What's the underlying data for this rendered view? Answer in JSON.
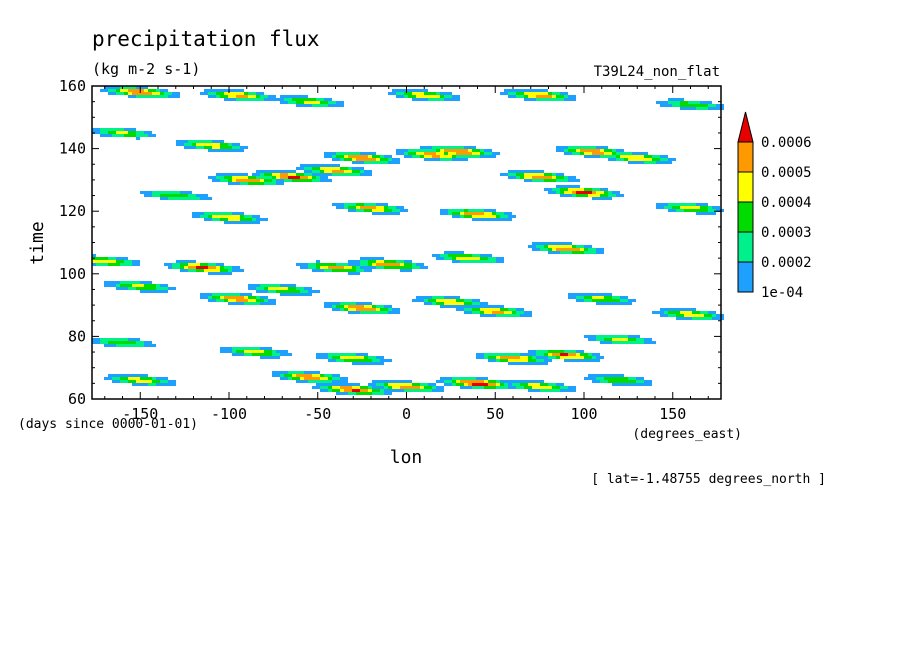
{
  "chart_data": {
    "type": "heatmap",
    "title": "precipitation flux",
    "units": "(kg m-2 s-1)",
    "run_label": "T39L24_non_flat",
    "xlabel": "lon",
    "x_units": "(degrees_east)",
    "ylabel": "time",
    "y_units": "(days since 0000-01-01)",
    "note": "[ lat=-1.48755 degrees_north ]",
    "xlim": [
      -177.1875,
      177.1875
    ],
    "ylim": [
      60,
      160
    ],
    "x_ticks": [
      -150,
      -100,
      -50,
      0,
      50,
      100,
      150
    ],
    "x_tick_labels": [
      "-150",
      "-100",
      "-50",
      "0",
      "50",
      "100",
      "150"
    ],
    "y_ticks": [
      60,
      80,
      100,
      120,
      140,
      160
    ],
    "y_tick_labels": [
      "60",
      "80",
      "100",
      "120",
      "140",
      "160"
    ],
    "colorbar": {
      "levels": [
        "1e-04",
        "0.0002",
        "0.0003",
        "0.0004",
        "0.0005",
        "0.0006"
      ],
      "colors": [
        "#1ea0ff",
        "#00f08c",
        "#00dc00",
        "#ffff00",
        "#ff9900",
        "#e60000"
      ],
      "extend": "max"
    },
    "events": [
      {
        "lon": -150,
        "time": 158,
        "amp": 0.00062
      },
      {
        "lon": -95,
        "time": 157,
        "amp": 0.00055
      },
      {
        "lon": -55,
        "time": 155,
        "amp": 0.00045
      },
      {
        "lon": 10,
        "time": 157,
        "amp": 0.0005
      },
      {
        "lon": 75,
        "time": 157,
        "amp": 0.00058
      },
      {
        "lon": 160,
        "time": 154,
        "amp": 0.0004
      },
      {
        "lon": -160,
        "time": 145,
        "amp": 0.00042
      },
      {
        "lon": -110,
        "time": 141,
        "amp": 0.0005
      },
      {
        "lon": -25,
        "time": 137,
        "amp": 0.00062
      },
      {
        "lon": 15,
        "time": 138,
        "amp": 0.00058
      },
      {
        "lon": 30,
        "time": 139,
        "amp": 0.00064
      },
      {
        "lon": 105,
        "time": 139,
        "amp": 0.0006
      },
      {
        "lon": 130,
        "time": 137,
        "amp": 0.00055
      },
      {
        "lon": -90,
        "time": 130,
        "amp": 0.0006
      },
      {
        "lon": -65,
        "time": 131,
        "amp": 0.00065
      },
      {
        "lon": -40,
        "time": 133,
        "amp": 0.00055
      },
      {
        "lon": 75,
        "time": 131,
        "amp": 0.0006
      },
      {
        "lon": 100,
        "time": 126,
        "amp": 0.00065
      },
      {
        "lon": -130,
        "time": 125,
        "amp": 0.0004
      },
      {
        "lon": -100,
        "time": 118,
        "amp": 0.00052
      },
      {
        "lon": -20,
        "time": 121,
        "amp": 0.00055
      },
      {
        "lon": 40,
        "time": 119,
        "amp": 0.0006
      },
      {
        "lon": 160,
        "time": 121,
        "amp": 0.00048
      },
      {
        "lon": -170,
        "time": 104,
        "amp": 0.0005
      },
      {
        "lon": -115,
        "time": 102,
        "amp": 0.00065
      },
      {
        "lon": -40,
        "time": 102,
        "amp": 0.00055
      },
      {
        "lon": -10,
        "time": 103,
        "amp": 0.0006
      },
      {
        "lon": 35,
        "time": 105,
        "amp": 0.0005
      },
      {
        "lon": 90,
        "time": 108,
        "amp": 0.0006
      },
      {
        "lon": -150,
        "time": 96,
        "amp": 0.00045
      },
      {
        "lon": -95,
        "time": 92,
        "amp": 0.0006
      },
      {
        "lon": -70,
        "time": 95,
        "amp": 0.00048
      },
      {
        "lon": -25,
        "time": 89,
        "amp": 0.00062
      },
      {
        "lon": 25,
        "time": 91,
        "amp": 0.00052
      },
      {
        "lon": 50,
        "time": 88,
        "amp": 0.00055
      },
      {
        "lon": 110,
        "time": 92,
        "amp": 0.00045
      },
      {
        "lon": 160,
        "time": 87,
        "amp": 0.0005
      },
      {
        "lon": -160,
        "time": 78,
        "amp": 0.0004
      },
      {
        "lon": -85,
        "time": 75,
        "amp": 0.00045
      },
      {
        "lon": -30,
        "time": 73,
        "amp": 0.0005
      },
      {
        "lon": 60,
        "time": 73,
        "amp": 0.00058
      },
      {
        "lon": 90,
        "time": 74,
        "amp": 0.00062
      },
      {
        "lon": 120,
        "time": 79,
        "amp": 0.00045
      },
      {
        "lon": -150,
        "time": 66,
        "amp": 0.00048
      },
      {
        "lon": -55,
        "time": 67,
        "amp": 0.0006
      },
      {
        "lon": -30,
        "time": 63,
        "amp": 0.00065
      },
      {
        "lon": 0,
        "time": 64,
        "amp": 0.0006
      },
      {
        "lon": 40,
        "time": 65,
        "amp": 0.0007
      },
      {
        "lon": 75,
        "time": 64,
        "amp": 0.0005
      },
      {
        "lon": 120,
        "time": 66,
        "amp": 0.00042
      }
    ]
  }
}
